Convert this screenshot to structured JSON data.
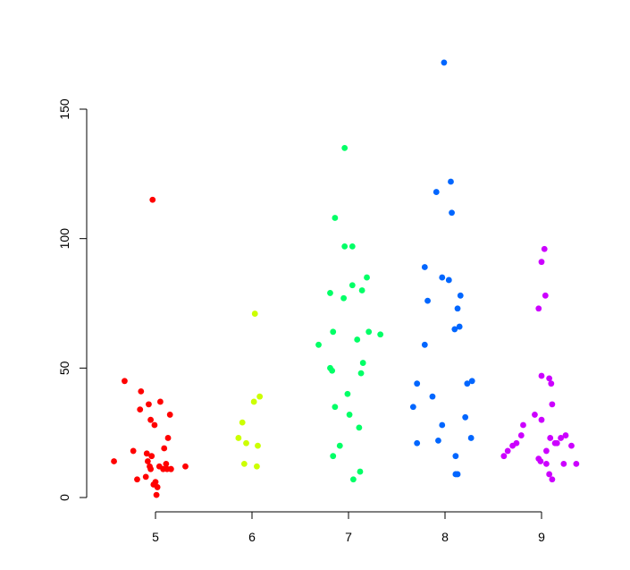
{
  "chart_data": {
    "type": "scatter",
    "title": "",
    "xlabel": "",
    "ylabel": "",
    "x_ticks": [
      "5",
      "6",
      "7",
      "8",
      "9"
    ],
    "y_ticks": [
      "0",
      "50",
      "100",
      "150"
    ],
    "xlim": [
      4.56,
      9.44
    ],
    "ylim": [
      0,
      168
    ],
    "grid": false,
    "legend": "none",
    "series": [
      {
        "color": "#ff0000",
        "x": [
          4.97,
          4.68,
          4.85,
          5.05,
          4.93,
          4.84,
          5.15,
          4.95,
          4.99,
          5.13,
          5.09,
          4.77,
          4.91,
          4.96,
          5.11,
          4.94,
          5.04,
          5.08,
          4.95,
          5.12,
          5.16,
          4.92,
          4.81,
          4.57,
          4.9,
          5.0,
          5.31,
          5.16,
          4.98,
          5.02,
          5.01
        ],
        "y": [
          115,
          45,
          41,
          37,
          36,
          34,
          32,
          30,
          28,
          23,
          19,
          18,
          17,
          16,
          13,
          12,
          12,
          11,
          11,
          11,
          11,
          14,
          7,
          14,
          8,
          6,
          12,
          11,
          5,
          4,
          1
        ]
      },
      {
        "color": "#ccff00",
        "x": [
          6.03,
          6.08,
          6.02,
          5.9,
          5.86,
          5.94,
          6.06,
          5.92,
          6.05
        ],
        "y": [
          71,
          39,
          37,
          29,
          23,
          21,
          20,
          13,
          12
        ]
      },
      {
        "color": "#00ff66",
        "x": [
          6.96,
          6.86,
          6.96,
          7.04,
          7.19,
          7.04,
          6.81,
          6.95,
          7.14,
          6.84,
          7.21,
          7.33,
          7.09,
          6.69,
          6.81,
          6.83,
          7.15,
          7.13,
          6.99,
          6.86,
          7.01,
          7.11,
          6.91,
          6.84,
          7.12,
          7.05
        ],
        "y": [
          135,
          108,
          97,
          97,
          85,
          82,
          79,
          77,
          80,
          64,
          64,
          63,
          61,
          59,
          50,
          49,
          52,
          48,
          40,
          35,
          32,
          27,
          20,
          16,
          10,
          7
        ]
      },
      {
        "color": "#0066ff",
        "x": [
          7.99,
          8.06,
          7.91,
          8.07,
          7.79,
          7.97,
          8.04,
          7.82,
          8.16,
          8.13,
          8.15,
          8.1,
          7.79,
          8.28,
          8.23,
          7.71,
          7.87,
          7.67,
          8.21,
          7.97,
          8.27,
          7.93,
          7.71,
          8.11,
          8.13,
          8.11
        ],
        "y": [
          168,
          122,
          118,
          110,
          89,
          85,
          84,
          76,
          78,
          73,
          66,
          65,
          59,
          45,
          44,
          44,
          39,
          35,
          31,
          28,
          23,
          22,
          21,
          16,
          9,
          9
        ]
      },
      {
        "color": "#cc00ff",
        "x": [
          9.03,
          9.0,
          9.04,
          8.97,
          9.0,
          9.08,
          9.1,
          9.11,
          8.93,
          9.0,
          8.81,
          9.09,
          9.2,
          9.16,
          9.25,
          9.31,
          8.79,
          8.74,
          8.7,
          9.05,
          9.14,
          8.97,
          8.99,
          9.23,
          8.65,
          8.61,
          9.05,
          9.36,
          9.08,
          9.11
        ],
        "y": [
          96,
          91,
          78,
          73,
          47,
          46,
          44,
          36,
          32,
          30,
          28,
          23,
          23,
          21,
          24,
          20,
          24,
          21,
          20,
          18,
          21,
          15,
          14,
          13,
          18,
          16,
          13,
          13,
          9,
          7
        ]
      }
    ]
  }
}
